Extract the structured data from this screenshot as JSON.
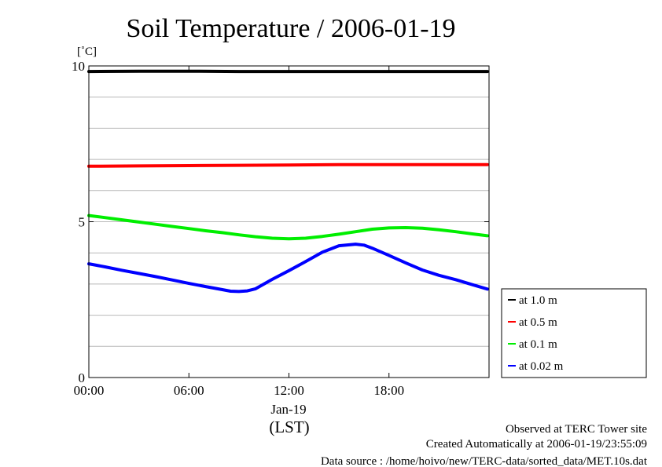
{
  "chart_data": {
    "type": "line",
    "title": "Soil Temperature / 2006-01-19",
    "ylabel": "[˚C]",
    "xlabel": "(LST)",
    "x_date_label": "Jan-19",
    "ylim": [
      0,
      10
    ],
    "xlim": [
      0,
      24
    ],
    "y_ticks": [
      {
        "value": 0,
        "label": "0"
      },
      {
        "value": 5,
        "label": "5"
      },
      {
        "value": 10,
        "label": "10"
      }
    ],
    "y_gridlines": [
      1,
      2,
      3,
      4,
      5,
      6,
      7,
      8,
      9
    ],
    "x_ticks": [
      {
        "value": 0,
        "label": "00:00"
      },
      {
        "value": 6,
        "label": "06:00"
      },
      {
        "value": 12,
        "label": "12:00"
      },
      {
        "value": 18,
        "label": "18:00"
      }
    ],
    "grid": true,
    "legend_position": "right",
    "series": [
      {
        "name": "at 1.0 m",
        "color": "#000000",
        "x": [
          0,
          3,
          6,
          9,
          12,
          15,
          18,
          21,
          23.9
        ],
        "y": [
          9.82,
          9.83,
          9.83,
          9.82,
          9.82,
          9.82,
          9.82,
          9.82,
          9.82
        ]
      },
      {
        "name": "at 0.5 m",
        "color": "#ff0000",
        "x": [
          0,
          3,
          6,
          9,
          12,
          15,
          18,
          21,
          23.9
        ],
        "y": [
          6.78,
          6.79,
          6.8,
          6.81,
          6.82,
          6.83,
          6.83,
          6.83,
          6.83
        ]
      },
      {
        "name": "at 0.1 m",
        "color": "#00ee00",
        "x": [
          0,
          1,
          2,
          3,
          4,
          5,
          6,
          7,
          8,
          9,
          10,
          11,
          12,
          13,
          14,
          15,
          16,
          17,
          18,
          19,
          20,
          21,
          22,
          23,
          23.9
        ],
        "y": [
          5.2,
          5.13,
          5.06,
          4.99,
          4.92,
          4.85,
          4.78,
          4.71,
          4.65,
          4.58,
          4.52,
          4.47,
          4.45,
          4.47,
          4.53,
          4.6,
          4.68,
          4.76,
          4.8,
          4.81,
          4.79,
          4.74,
          4.68,
          4.61,
          4.55
        ]
      },
      {
        "name": "at 0.02 m",
        "color": "#0000ff",
        "x": [
          0,
          1,
          2,
          3,
          4,
          5,
          6,
          7,
          8,
          8.5,
          9,
          9.5,
          10,
          11,
          12,
          13,
          14,
          15,
          16,
          16.5,
          17,
          18,
          19,
          20,
          21,
          22,
          23,
          23.9
        ],
        "y": [
          3.65,
          3.55,
          3.44,
          3.34,
          3.24,
          3.13,
          3.02,
          2.92,
          2.82,
          2.77,
          2.76,
          2.78,
          2.85,
          3.15,
          3.43,
          3.72,
          4.02,
          4.23,
          4.28,
          4.25,
          4.15,
          3.92,
          3.68,
          3.45,
          3.28,
          3.14,
          2.98,
          2.84
        ]
      }
    ]
  },
  "footer": {
    "observed": "Observed at TERC Tower site",
    "created": "Created Automatically at 2006-01-19/23:55:09",
    "source": "Data source : /home/hoivo/new/TERC-data/sorted_data/MET.10s.dat"
  }
}
